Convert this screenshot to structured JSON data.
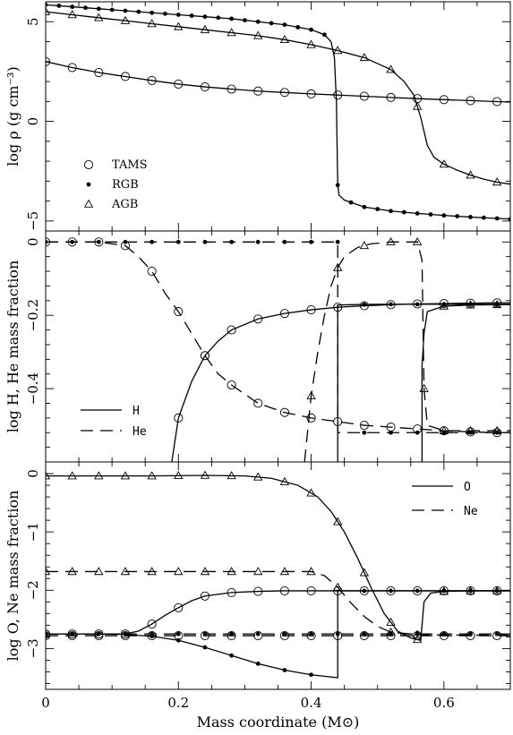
{
  "chart_data": [
    {
      "type": "line",
      "panel": "density",
      "xlim": [
        0,
        0.7
      ],
      "ylim": [
        -5.5,
        6
      ],
      "ylabel": "log ρ (g cm⁻³)",
      "yticks": [
        -5,
        0,
        5
      ],
      "yticklabels": [
        "−5",
        "0",
        "5"
      ],
      "legend_position": "lower-left",
      "series": [
        {
          "name": "TAMS",
          "marker": "open-circle",
          "style": "solid",
          "x": [
            0,
            0.04,
            0.08,
            0.12,
            0.16,
            0.2,
            0.24,
            0.28,
            0.32,
            0.36,
            0.4,
            0.44,
            0.48,
            0.52,
            0.56,
            0.6,
            0.64,
            0.68,
            0.7
          ],
          "y": [
            3.0,
            2.7,
            2.45,
            2.25,
            2.05,
            1.87,
            1.73,
            1.62,
            1.52,
            1.45,
            1.38,
            1.32,
            1.26,
            1.2,
            1.14,
            1.09,
            1.04,
            0.99,
            0.97
          ],
          "marker_x": [
            0,
            0.04,
            0.08,
            0.12,
            0.16,
            0.2,
            0.24,
            0.28,
            0.32,
            0.36,
            0.4,
            0.44,
            0.48,
            0.52,
            0.56,
            0.6,
            0.64,
            0.68
          ]
        },
        {
          "name": "RGB",
          "marker": "filled-dot",
          "style": "solid",
          "x": [
            0,
            0.04,
            0.08,
            0.12,
            0.16,
            0.2,
            0.24,
            0.28,
            0.32,
            0.36,
            0.4,
            0.42,
            0.43,
            0.435,
            0.438,
            0.44,
            0.442,
            0.45,
            0.48,
            0.52,
            0.56,
            0.6,
            0.64,
            0.68,
            0.7
          ],
          "y": [
            5.85,
            5.75,
            5.65,
            5.55,
            5.45,
            5.35,
            5.25,
            5.15,
            5.0,
            4.85,
            4.6,
            4.35,
            4.0,
            3.2,
            1.0,
            -3.2,
            -3.7,
            -3.95,
            -4.3,
            -4.5,
            -4.62,
            -4.72,
            -4.8,
            -4.87,
            -4.9
          ],
          "marker_x": [
            0,
            0.02,
            0.04,
            0.06,
            0.08,
            0.1,
            0.12,
            0.14,
            0.16,
            0.18,
            0.2,
            0.22,
            0.24,
            0.26,
            0.28,
            0.3,
            0.32,
            0.34,
            0.36,
            0.38,
            0.4,
            0.42,
            0.44,
            0.46,
            0.48,
            0.5,
            0.52,
            0.54,
            0.56,
            0.58,
            0.6,
            0.62,
            0.64,
            0.66,
            0.68,
            0.7
          ]
        },
        {
          "name": "AGB",
          "marker": "open-triangle",
          "style": "solid",
          "x": [
            0,
            0.04,
            0.08,
            0.12,
            0.16,
            0.2,
            0.24,
            0.28,
            0.32,
            0.36,
            0.4,
            0.44,
            0.48,
            0.52,
            0.54,
            0.555,
            0.565,
            0.575,
            0.585,
            0.6,
            0.62,
            0.64,
            0.66,
            0.68,
            0.7
          ],
          "y": [
            5.5,
            5.35,
            5.2,
            5.05,
            4.9,
            4.75,
            4.6,
            4.45,
            4.3,
            4.1,
            3.85,
            3.55,
            3.2,
            2.6,
            2.0,
            1.3,
            0.2,
            -1.2,
            -1.8,
            -2.15,
            -2.45,
            -2.7,
            -2.9,
            -3.05,
            -3.15
          ],
          "marker_x": [
            0,
            0.04,
            0.08,
            0.12,
            0.16,
            0.2,
            0.24,
            0.28,
            0.32,
            0.36,
            0.4,
            0.44,
            0.48,
            0.52,
            0.56,
            0.6,
            0.64,
            0.68
          ]
        }
      ],
      "legend": [
        {
          "marker": "open-circle",
          "label": "TAMS"
        },
        {
          "marker": "filled-dot",
          "label": "RGB"
        },
        {
          "marker": "open-triangle",
          "label": "AGB"
        }
      ]
    },
    {
      "type": "line",
      "panel": "H-He",
      "xlim": [
        0,
        0.7
      ],
      "ylim": [
        -0.6,
        0.03
      ],
      "ylabel": "log H, He mass fraction",
      "yticks": [
        0,
        -0.2,
        -0.4
      ],
      "yticklabels": [
        "0",
        "−0.2",
        "−0.4"
      ],
      "legend_position": "lower-left",
      "series": [
        {
          "name": "H",
          "stage": "TAMS",
          "style": "solid",
          "marker": "open-circle",
          "x": [
            0.19,
            0.2,
            0.22,
            0.24,
            0.26,
            0.28,
            0.32,
            0.36,
            0.4,
            0.44,
            0.48,
            0.52,
            0.56,
            0.6,
            0.64,
            0.68,
            0.7
          ],
          "y": [
            -0.6,
            -0.48,
            -0.38,
            -0.31,
            -0.27,
            -0.24,
            -0.21,
            -0.195,
            -0.185,
            -0.178,
            -0.174,
            -0.171,
            -0.169,
            -0.168,
            -0.167,
            -0.166,
            -0.166
          ],
          "marker_x": [
            0.2,
            0.24,
            0.28,
            0.32,
            0.36,
            0.4,
            0.44,
            0.48,
            0.52,
            0.56,
            0.6,
            0.64,
            0.68
          ]
        },
        {
          "name": "He",
          "stage": "TAMS",
          "style": "dashed",
          "marker": "open-circle",
          "x": [
            0,
            0.04,
            0.08,
            0.12,
            0.14,
            0.16,
            0.18,
            0.2,
            0.22,
            0.24,
            0.26,
            0.28,
            0.32,
            0.36,
            0.4,
            0.44,
            0.48,
            0.52,
            0.56,
            0.6,
            0.64,
            0.68,
            0.7
          ],
          "y": [
            0,
            0,
            0,
            -0.01,
            -0.04,
            -0.08,
            -0.14,
            -0.19,
            -0.25,
            -0.31,
            -0.36,
            -0.39,
            -0.44,
            -0.465,
            -0.48,
            -0.49,
            -0.5,
            -0.505,
            -0.51,
            -0.515,
            -0.518,
            -0.52,
            -0.52
          ],
          "marker_x": [
            0,
            0.04,
            0.08,
            0.12,
            0.16,
            0.2,
            0.24,
            0.28,
            0.32,
            0.36,
            0.4,
            0.44,
            0.48,
            0.52,
            0.56,
            0.6,
            0.64,
            0.68
          ]
        },
        {
          "name": "H",
          "stage": "RGB",
          "style": "solid",
          "marker": "filled-dot",
          "x": [
            0.44,
            0.44,
            0.46,
            0.5,
            0.54,
            0.58,
            0.62,
            0.66,
            0.7
          ],
          "y": [
            -0.6,
            -0.172,
            -0.171,
            -0.17,
            -0.17,
            -0.17,
            -0.17,
            -0.17,
            -0.17
          ],
          "marker_x": [
            0.48,
            0.52,
            0.56,
            0.6,
            0.64,
            0.68
          ]
        },
        {
          "name": "He",
          "stage": "RGB",
          "style": "dashed",
          "marker": "filled-dot",
          "x": [
            0,
            0.1,
            0.2,
            0.3,
            0.4,
            0.44,
            0.44,
            0.48,
            0.52,
            0.56,
            0.6,
            0.64,
            0.68,
            0.7
          ],
          "y": [
            0,
            0,
            0,
            0,
            0,
            0,
            -0.52,
            -0.52,
            -0.52,
            -0.52,
            -0.52,
            -0.52,
            -0.52,
            -0.52
          ],
          "marker_x": [
            0,
            0.04,
            0.08,
            0.12,
            0.16,
            0.2,
            0.24,
            0.28,
            0.32,
            0.36,
            0.4,
            0.44,
            0.48,
            0.52,
            0.56,
            0.6,
            0.64,
            0.68
          ]
        },
        {
          "name": "H",
          "stage": "AGB",
          "style": "solid",
          "marker": "open-triangle",
          "x": [
            0.567,
            0.567,
            0.57,
            0.575,
            0.6,
            0.64,
            0.68,
            0.7
          ],
          "y": [
            -0.6,
            -0.34,
            -0.25,
            -0.19,
            -0.175,
            -0.172,
            -0.171,
            -0.171
          ],
          "marker_x": [
            0.6,
            0.64,
            0.68
          ]
        },
        {
          "name": "He",
          "stage": "AGB",
          "style": "dashed",
          "marker": "open-triangle",
          "x": [
            0.39,
            0.4,
            0.41,
            0.42,
            0.43,
            0.44,
            0.45,
            0.47,
            0.49,
            0.52,
            0.56,
            0.567,
            0.57,
            0.575,
            0.6,
            0.64,
            0.68,
            0.7
          ],
          "y": [
            -0.6,
            -0.42,
            -0.3,
            -0.2,
            -0.12,
            -0.07,
            -0.04,
            -0.015,
            -0.005,
            0,
            0,
            -0.05,
            -0.4,
            -0.5,
            -0.515,
            -0.515,
            -0.515,
            -0.515
          ],
          "marker_x": [
            0.4,
            0.44,
            0.48,
            0.52,
            0.56,
            0.57,
            0.6,
            0.64,
            0.68
          ]
        }
      ],
      "legend": [
        {
          "style": "solid",
          "label": "H"
        },
        {
          "style": "dashed",
          "label": "He"
        }
      ]
    },
    {
      "type": "line",
      "panel": "O-Ne",
      "xlim": [
        0,
        0.7
      ],
      "ylim": [
        -3.7,
        0.2
      ],
      "ylabel": "log O, Ne mass fraction",
      "xlabel": "Mass coordinate (M⊙)",
      "xticks": [
        0,
        0.2,
        0.4,
        0.6
      ],
      "xticklabels": [
        "0",
        "0.2",
        "0.4",
        "0.6"
      ],
      "yticks": [
        0,
        -1,
        -2,
        -3
      ],
      "yticklabels": [
        "0",
        "−1",
        "−2",
        "−3"
      ],
      "legend_position": "upper-right",
      "series": [
        {
          "name": "O",
          "stage": "TAMS",
          "style": "solid",
          "marker": "open-circle",
          "x": [
            0,
            0.04,
            0.08,
            0.12,
            0.14,
            0.16,
            0.18,
            0.2,
            0.22,
            0.24,
            0.28,
            0.32,
            0.36,
            0.4,
            0.44,
            0.48,
            0.52,
            0.56,
            0.6,
            0.64,
            0.68,
            0.7
          ],
          "y": [
            -2.75,
            -2.75,
            -2.75,
            -2.75,
            -2.7,
            -2.58,
            -2.43,
            -2.3,
            -2.18,
            -2.1,
            -2.04,
            -2.02,
            -2.01,
            -2.01,
            -2.01,
            -2.01,
            -2.01,
            -2.01,
            -2.01,
            -2.01,
            -2.01,
            -2.01
          ],
          "marker_x": [
            0,
            0.04,
            0.08,
            0.12,
            0.16,
            0.2,
            0.24,
            0.28,
            0.32,
            0.36,
            0.4,
            0.44,
            0.48,
            0.52,
            0.56,
            0.6,
            0.64,
            0.68
          ]
        },
        {
          "name": "Ne",
          "stage": "TAMS",
          "style": "dashed",
          "marker": "open-circle",
          "x": [
            0,
            0.7
          ],
          "y": [
            -2.78,
            -2.78
          ],
          "marker_x": [
            0,
            0.04,
            0.08,
            0.12,
            0.16,
            0.2,
            0.24,
            0.28,
            0.32,
            0.36,
            0.4,
            0.44,
            0.48,
            0.52,
            0.56,
            0.6,
            0.64,
            0.68
          ]
        },
        {
          "name": "O",
          "stage": "RGB",
          "style": "solid",
          "marker": "filled-dot",
          "x": [
            0,
            0.08,
            0.12,
            0.16,
            0.2,
            0.24,
            0.28,
            0.32,
            0.36,
            0.4,
            0.44,
            0.44,
            0.48,
            0.52,
            0.56,
            0.6,
            0.64,
            0.68,
            0.7
          ],
          "y": [
            -2.75,
            -2.75,
            -2.76,
            -2.79,
            -2.86,
            -2.98,
            -3.12,
            -3.26,
            -3.37,
            -3.45,
            -3.5,
            -2.01,
            -2.01,
            -2.01,
            -2.01,
            -2.01,
            -2.01,
            -2.01,
            -2.01
          ],
          "marker_x": [
            0,
            0.04,
            0.08,
            0.12,
            0.16,
            0.2,
            0.24,
            0.28,
            0.32,
            0.36,
            0.4,
            0.48,
            0.52,
            0.56,
            0.6,
            0.64,
            0.68
          ]
        },
        {
          "name": "Ne",
          "stage": "RGB",
          "style": "dashed",
          "marker": "filled-dot",
          "x": [
            0,
            0.7
          ],
          "y": [
            -2.75,
            -2.75
          ],
          "marker_x": [
            0,
            0.04,
            0.08,
            0.12,
            0.16,
            0.2,
            0.24,
            0.28,
            0.32,
            0.36,
            0.4,
            0.44,
            0.48,
            0.52,
            0.56,
            0.6,
            0.64,
            0.68
          ]
        },
        {
          "name": "O",
          "stage": "AGB",
          "style": "solid",
          "marker": "open-triangle",
          "x": [
            0,
            0.08,
            0.16,
            0.24,
            0.3,
            0.34,
            0.38,
            0.41,
            0.43,
            0.45,
            0.47,
            0.49,
            0.51,
            0.53,
            0.55,
            0.565,
            0.567,
            0.57,
            0.58,
            0.6,
            0.64,
            0.68,
            0.7
          ],
          "y": [
            -0.04,
            -0.04,
            -0.04,
            -0.03,
            -0.04,
            -0.08,
            -0.2,
            -0.4,
            -0.65,
            -1.0,
            -1.45,
            -1.95,
            -2.4,
            -2.7,
            -2.82,
            -2.86,
            -2.6,
            -2.2,
            -2.05,
            -2.02,
            -2.01,
            -2.01,
            -2.01
          ],
          "marker_x": [
            0,
            0.04,
            0.08,
            0.12,
            0.16,
            0.2,
            0.24,
            0.28,
            0.32,
            0.36,
            0.4,
            0.44,
            0.48,
            0.52,
            0.56,
            0.6,
            0.64,
            0.68
          ]
        },
        {
          "name": "Ne",
          "stage": "AGB",
          "style": "dashed",
          "marker": "open-triangle",
          "x": [
            0,
            0.4,
            0.42,
            0.44,
            0.46,
            0.48,
            0.5,
            0.52,
            0.56,
            0.6,
            0.7
          ],
          "y": [
            -1.68,
            -1.68,
            -1.75,
            -1.95,
            -2.22,
            -2.45,
            -2.62,
            -2.72,
            -2.76,
            -2.77,
            -2.77
          ],
          "marker_x": [
            0,
            0.04,
            0.08,
            0.12,
            0.16,
            0.2,
            0.24,
            0.28,
            0.32,
            0.36,
            0.4,
            0.44,
            0.52,
            0.56
          ]
        }
      ],
      "legend": [
        {
          "style": "solid",
          "label": "O"
        },
        {
          "style": "dashed",
          "label": "Ne"
        }
      ]
    }
  ]
}
